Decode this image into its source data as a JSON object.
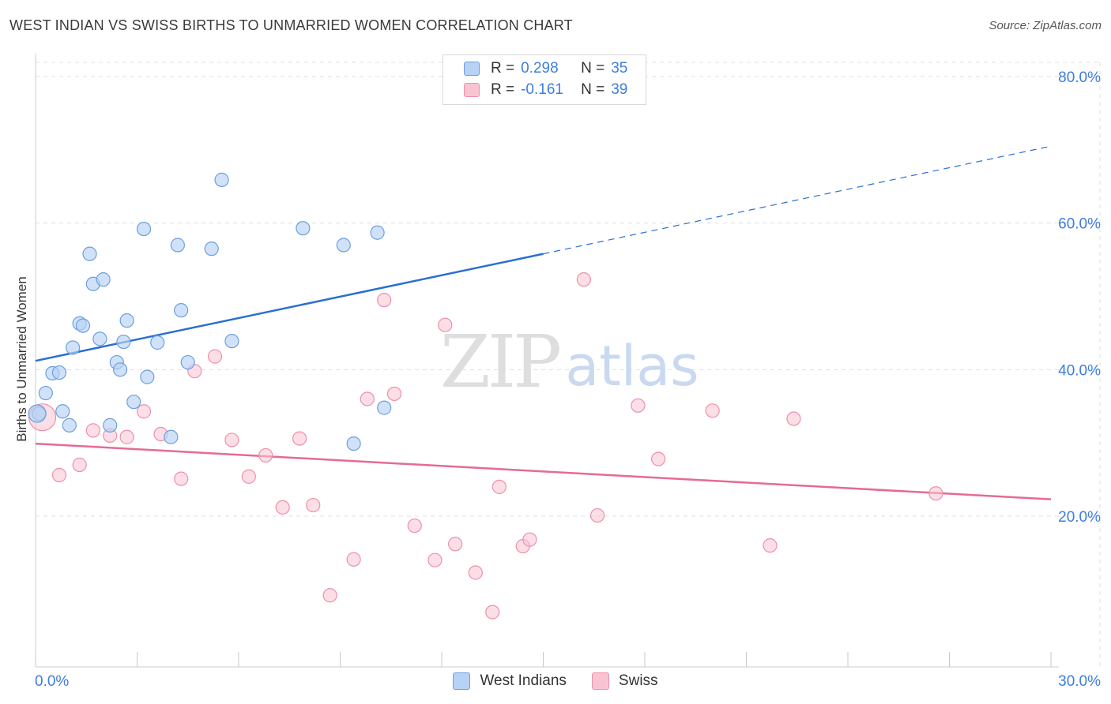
{
  "title": "WEST INDIAN VS SWISS BIRTHS TO UNMARRIED WOMEN CORRELATION CHART",
  "source": "Source: ZipAtlas.com",
  "watermark": {
    "zip": "ZIP",
    "atlas": "atlas"
  },
  "legend": {
    "r_label": "R =",
    "n_label": "N =",
    "west_indians": {
      "r": "0.298",
      "n": "35"
    },
    "swiss": {
      "r": "-0.161",
      "n": "39"
    }
  },
  "colors": {
    "west_indians_fill": "#b8d2f5",
    "west_indians_stroke": "#6a9fe0",
    "west_indians_line": "#2a6fd0",
    "swiss_fill": "#f9c4d2",
    "swiss_stroke": "#ee8fab",
    "swiss_line": "#e56b93",
    "axis_label": "#3d7ee0",
    "grid": "#e0e0e0"
  },
  "chart_data": {
    "type": "scatter",
    "title": "WEST INDIAN VS SWISS BIRTHS TO UNMARRIED WOMEN CORRELATION CHART",
    "xlabel": "",
    "ylabel": "Births to Unmarried Women",
    "xlim": [
      0,
      30
    ],
    "ylim": [
      0,
      85
    ],
    "x_tick_labels": [
      "0.0%",
      "30.0%"
    ],
    "y_ticks": [
      20,
      40,
      60,
      80
    ],
    "y_tick_labels": [
      "20.0%",
      "40.0%",
      "60.0%",
      "80.0%"
    ],
    "legend_position": "top-center",
    "series": [
      {
        "name": "West Indians",
        "points": [
          [
            0.1,
            34.0
          ],
          [
            0.3,
            36.8
          ],
          [
            0.5,
            39.5
          ],
          [
            0.7,
            39.6
          ],
          [
            0.8,
            34.3
          ],
          [
            1.0,
            32.4
          ],
          [
            1.1,
            43.0
          ],
          [
            1.3,
            46.3
          ],
          [
            1.4,
            46.0
          ],
          [
            1.6,
            55.8
          ],
          [
            1.7,
            51.7
          ],
          [
            1.9,
            44.2
          ],
          [
            2.0,
            52.3
          ],
          [
            2.2,
            32.4
          ],
          [
            2.4,
            41.0
          ],
          [
            2.5,
            40.0
          ],
          [
            2.6,
            43.8
          ],
          [
            2.7,
            46.7
          ],
          [
            2.9,
            35.6
          ],
          [
            3.2,
            59.2
          ],
          [
            3.3,
            39.0
          ],
          [
            3.6,
            43.7
          ],
          [
            4.0,
            30.8
          ],
          [
            4.2,
            57.0
          ],
          [
            4.3,
            48.1
          ],
          [
            4.5,
            41.0
          ],
          [
            5.2,
            56.5
          ],
          [
            5.5,
            65.9
          ],
          [
            5.8,
            43.9
          ],
          [
            7.9,
            59.3
          ],
          [
            9.1,
            57.0
          ],
          [
            9.4,
            29.9
          ],
          [
            10.1,
            58.7
          ],
          [
            10.3,
            34.8
          ],
          [
            0.05,
            34.0
          ]
        ],
        "trend": {
          "x_start": 0,
          "y_start": 41.2,
          "x_solid_end": 15.0,
          "y_solid_end": 55.8,
          "x_end": 30,
          "y_end": 70.5
        }
      },
      {
        "name": "Swiss",
        "points": [
          [
            0.2,
            33.5
          ],
          [
            0.7,
            25.6
          ],
          [
            1.3,
            27.0
          ],
          [
            1.7,
            31.7
          ],
          [
            2.2,
            31.0
          ],
          [
            2.7,
            30.8
          ],
          [
            3.2,
            34.3
          ],
          [
            3.7,
            31.2
          ],
          [
            4.3,
            25.1
          ],
          [
            4.7,
            39.8
          ],
          [
            5.3,
            41.8
          ],
          [
            5.8,
            30.4
          ],
          [
            6.3,
            25.4
          ],
          [
            6.8,
            28.3
          ],
          [
            7.3,
            21.2
          ],
          [
            7.8,
            30.6
          ],
          [
            8.2,
            21.5
          ],
          [
            8.7,
            9.2
          ],
          [
            9.4,
            14.1
          ],
          [
            9.8,
            36.0
          ],
          [
            10.3,
            49.5
          ],
          [
            10.6,
            36.7
          ],
          [
            11.2,
            18.7
          ],
          [
            11.8,
            14.0
          ],
          [
            12.1,
            46.1
          ],
          [
            12.4,
            16.2
          ],
          [
            13.0,
            12.3
          ],
          [
            13.5,
            6.9
          ],
          [
            13.7,
            24.0
          ],
          [
            14.4,
            15.9
          ],
          [
            14.6,
            16.8
          ],
          [
            16.2,
            52.3
          ],
          [
            16.6,
            20.1
          ],
          [
            17.8,
            35.1
          ],
          [
            18.4,
            27.8
          ],
          [
            20.0,
            34.4
          ],
          [
            21.7,
            16.0
          ],
          [
            22.4,
            33.3
          ],
          [
            26.6,
            23.1
          ]
        ],
        "trend": {
          "x_start": 0,
          "y_start": 29.9,
          "x_end": 30,
          "y_end": 22.3
        }
      }
    ]
  },
  "bottom_legend": {
    "west_indians": "West Indians",
    "swiss": "Swiss"
  }
}
